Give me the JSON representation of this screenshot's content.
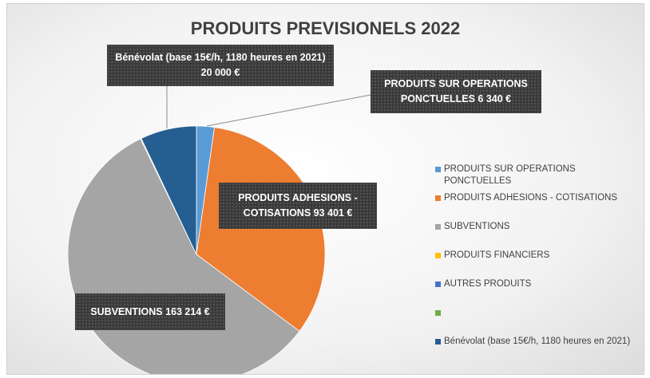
{
  "chart_data": {
    "type": "pie",
    "title": "PRODUITS PREVISIONELS 2022",
    "categories": [
      "PRODUITS SUR OPERATIONS PONCTUELLES",
      "PRODUITS ADHESIONS - COTISATIONS",
      "SUBVENTIONS",
      "PRODUITS FINANCIERS",
      "AUTRES PRODUITS",
      null,
      "Bénévolat (base 15€/h,  1180 heures en 2021)"
    ],
    "values": [
      6340,
      93401,
      163214,
      300,
      0,
      0,
      20000
    ],
    "value_labels": [
      "6 340 €",
      "93 401 €",
      "163 214 €",
      null,
      null,
      null,
      "20 000 €"
    ],
    "colors": [
      "#5b9bd5",
      "#ed7d31",
      "#a5a5a5",
      "#ffc000",
      "#4472c4",
      "#70ad47",
      "#255e91"
    ],
    "legend": "right"
  }
}
